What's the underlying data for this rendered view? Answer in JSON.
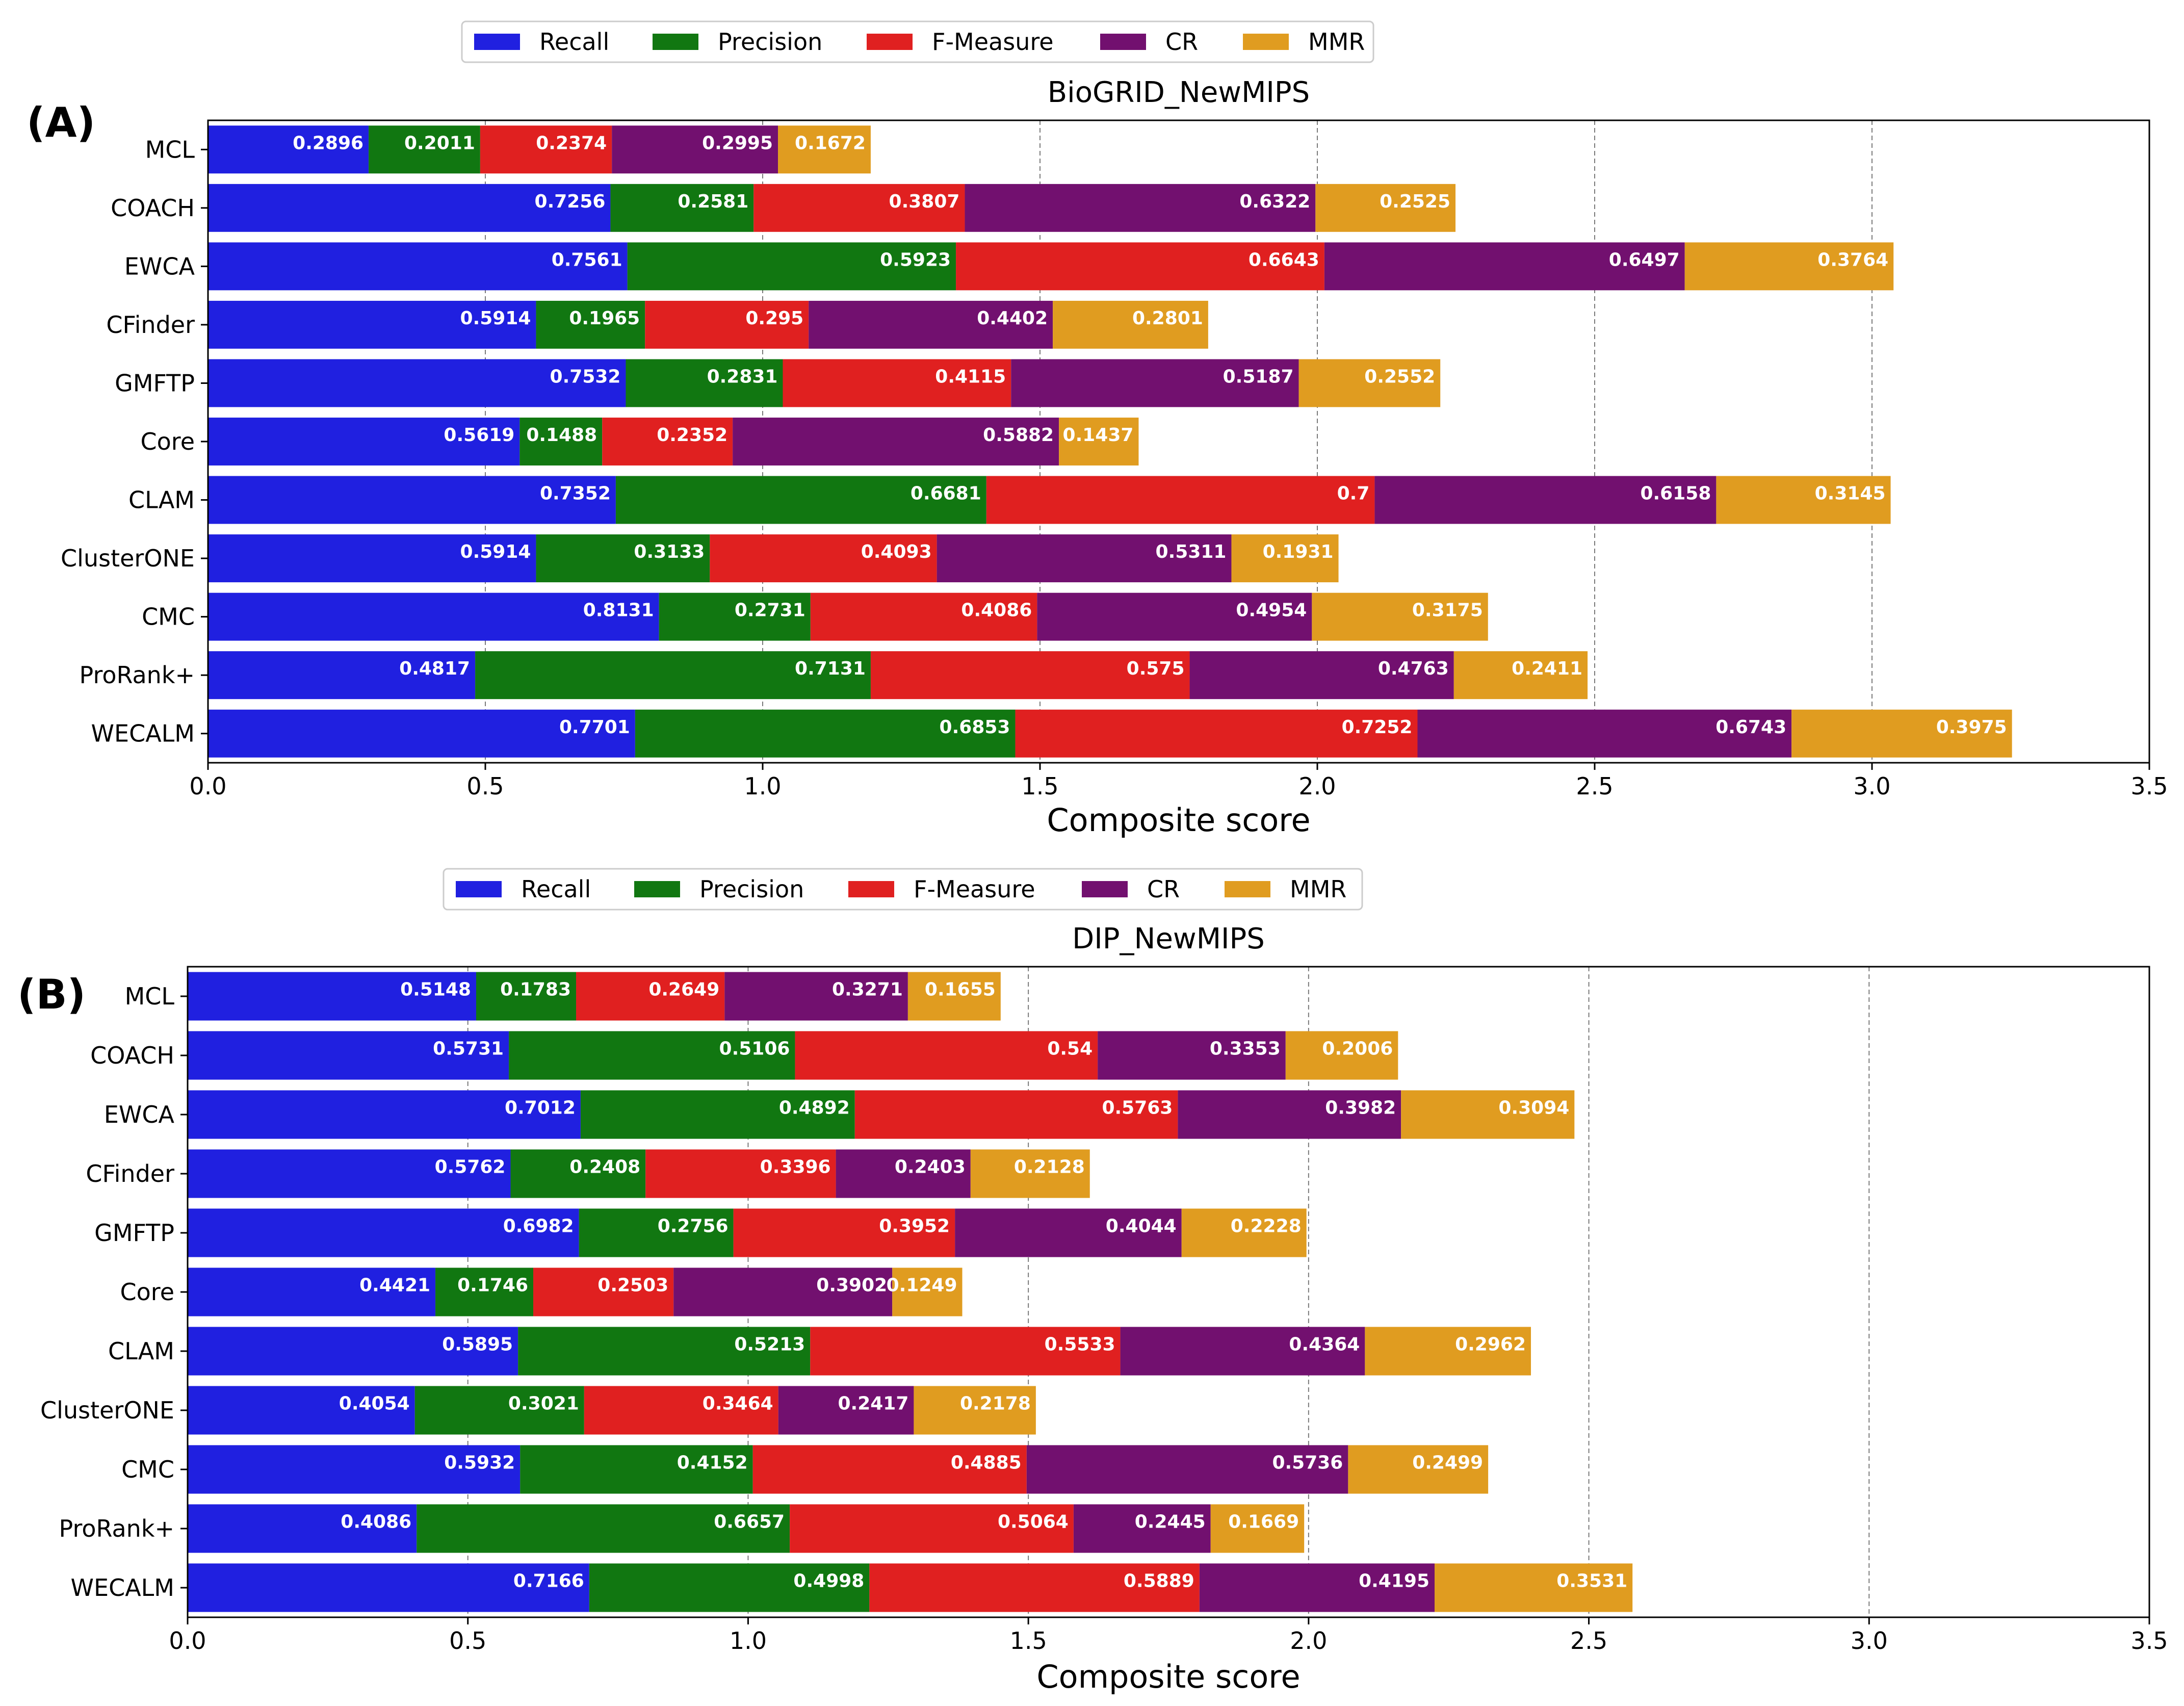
{
  "figure": {
    "panels": [
      "(A)",
      "(B)"
    ]
  },
  "chart_data": [
    {
      "type": "bar",
      "orientation": "horizontal",
      "stacked": true,
      "panel_label": "(A)",
      "title": "BioGRID_NewMIPS",
      "xlabel": "Composite score",
      "ylabel": "",
      "xlim": [
        0,
        3.5
      ],
      "xticks": [
        "0.0",
        "0.5",
        "1.0",
        "1.5",
        "2.0",
        "2.5",
        "3.0",
        "3.5"
      ],
      "grid": "vertical dashed",
      "legend": "top-center",
      "categories": [
        "MCL",
        "COACH",
        "EWCA",
        "CFinder",
        "GMFTP",
        "Core",
        "CLAM",
        "ClusterONE",
        "CMC",
        "ProRank+",
        "WECALM"
      ],
      "series": [
        {
          "name": "Recall",
          "color": "#2020e0",
          "values": [
            0.2896,
            0.7256,
            0.7561,
            0.5914,
            0.7532,
            0.5619,
            0.7352,
            0.5914,
            0.8131,
            0.4817,
            0.7701
          ],
          "labels": [
            "0.2896",
            "0.7256",
            "0.7561",
            "0.5914",
            "0.7532",
            "0.5619",
            "0.7352",
            "0.5914",
            "0.8131",
            "0.4817",
            "0.7701"
          ]
        },
        {
          "name": "Precision",
          "color": "#117711",
          "values": [
            0.2011,
            0.2581,
            0.5923,
            0.1965,
            0.2831,
            0.1488,
            0.6681,
            0.3133,
            0.2731,
            0.7131,
            0.6853
          ],
          "labels": [
            "0.2011",
            "0.2581",
            "0.5923",
            "0.1965",
            "0.2831",
            "0.1488",
            "0.6681",
            "0.3133",
            "0.2731",
            "0.7131",
            "0.6853"
          ]
        },
        {
          "name": "F-Measure",
          "color": "#e02020",
          "values": [
            0.2374,
            0.3807,
            0.6643,
            0.295,
            0.4115,
            0.2352,
            0.7,
            0.4093,
            0.4086,
            0.575,
            0.7252
          ],
          "labels": [
            "0.2374",
            "0.3807",
            "0.6643",
            "0.295",
            "0.4115",
            "0.2352",
            "0.7",
            "0.4093",
            "0.4086",
            "0.575",
            "0.7252"
          ]
        },
        {
          "name": "CR",
          "color": "#72106f",
          "values": [
            0.2995,
            0.6322,
            0.6497,
            0.4402,
            0.5187,
            0.5882,
            0.6158,
            0.5311,
            0.4954,
            0.4763,
            0.6743
          ],
          "labels": [
            "0.2995",
            "0.6322",
            "0.6497",
            "0.4402",
            "0.5187",
            "0.5882",
            "0.6158",
            "0.5311",
            "0.4954",
            "0.4763",
            "0.6743"
          ]
        },
        {
          "name": "MMR",
          "color": "#e09c20",
          "values": [
            0.1672,
            0.2525,
            0.3764,
            0.2801,
            0.2552,
            0.1437,
            0.3145,
            0.1931,
            0.3175,
            0.2411,
            0.3975
          ],
          "labels": [
            "0.1672",
            "0.2525",
            "0.3764",
            "0.2801",
            "0.2552",
            "0.1437",
            "0.3145",
            "0.1931",
            "0.3175",
            "0.2411",
            "0.3975"
          ]
        }
      ]
    },
    {
      "type": "bar",
      "orientation": "horizontal",
      "stacked": true,
      "panel_label": "(B)",
      "title": "DIP_NewMIPS",
      "xlabel": "Composite score",
      "ylabel": "",
      "xlim": [
        0,
        3.5
      ],
      "xticks": [
        "0.0",
        "0.5",
        "1.0",
        "1.5",
        "2.0",
        "2.5",
        "3.0",
        "3.5"
      ],
      "grid": "vertical dashed",
      "legend": "top-center",
      "categories": [
        "MCL",
        "COACH",
        "EWCA",
        "CFinder",
        "GMFTP",
        "Core",
        "CLAM",
        "ClusterONE",
        "CMC",
        "ProRank+",
        "WECALM"
      ],
      "series": [
        {
          "name": "Recall",
          "color": "#2020e0",
          "values": [
            0.5148,
            0.5731,
            0.7012,
            0.5762,
            0.6982,
            0.4421,
            0.5895,
            0.4054,
            0.5932,
            0.4086,
            0.7166
          ],
          "labels": [
            "0.5148",
            "0.5731",
            "0.7012",
            "0.5762",
            "0.6982",
            "0.4421",
            "0.5895",
            "0.4054",
            "0.5932",
            "0.4086",
            "0.7166"
          ]
        },
        {
          "name": "Precision",
          "color": "#117711",
          "values": [
            0.1783,
            0.5106,
            0.4892,
            0.2408,
            0.2756,
            0.1746,
            0.5213,
            0.3021,
            0.4152,
            0.6657,
            0.4998
          ],
          "labels": [
            "0.1783",
            "0.5106",
            "0.4892",
            "0.2408",
            "0.2756",
            "0.1746",
            "0.5213",
            "0.3021",
            "0.4152",
            "0.6657",
            "0.4998"
          ]
        },
        {
          "name": "F-Measure",
          "color": "#e02020",
          "values": [
            0.2649,
            0.54,
            0.5763,
            0.3396,
            0.3952,
            0.2503,
            0.5533,
            0.3464,
            0.4885,
            0.5064,
            0.5889
          ],
          "labels": [
            "0.2649",
            "0.54",
            "0.5763",
            "0.3396",
            "0.3952",
            "0.2503",
            "0.5533",
            "0.3464",
            "0.4885",
            "0.5064",
            "0.5889"
          ]
        },
        {
          "name": "CR",
          "color": "#72106f",
          "values": [
            0.3271,
            0.3353,
            0.3982,
            0.2403,
            0.4044,
            0.3902,
            0.4364,
            0.2417,
            0.5736,
            0.2445,
            0.4195
          ],
          "labels": [
            "0.3271",
            "0.3353",
            "0.3982",
            "0.2403",
            "0.4044",
            "0.3902",
            "0.4364",
            "0.2417",
            "0.5736",
            "0.2445",
            "0.4195"
          ]
        },
        {
          "name": "MMR",
          "color": "#e09c20",
          "values": [
            0.1655,
            0.2006,
            0.3094,
            0.2128,
            0.2228,
            0.1249,
            0.2962,
            0.2178,
            0.2499,
            0.1669,
            0.3531
          ],
          "labels": [
            "0.1655",
            "0.2006",
            "0.3094",
            "0.2128",
            "0.2228",
            "0.1249",
            "0.2962",
            "0.2178",
            "0.2499",
            "0.1669",
            "0.3531"
          ]
        }
      ]
    }
  ]
}
